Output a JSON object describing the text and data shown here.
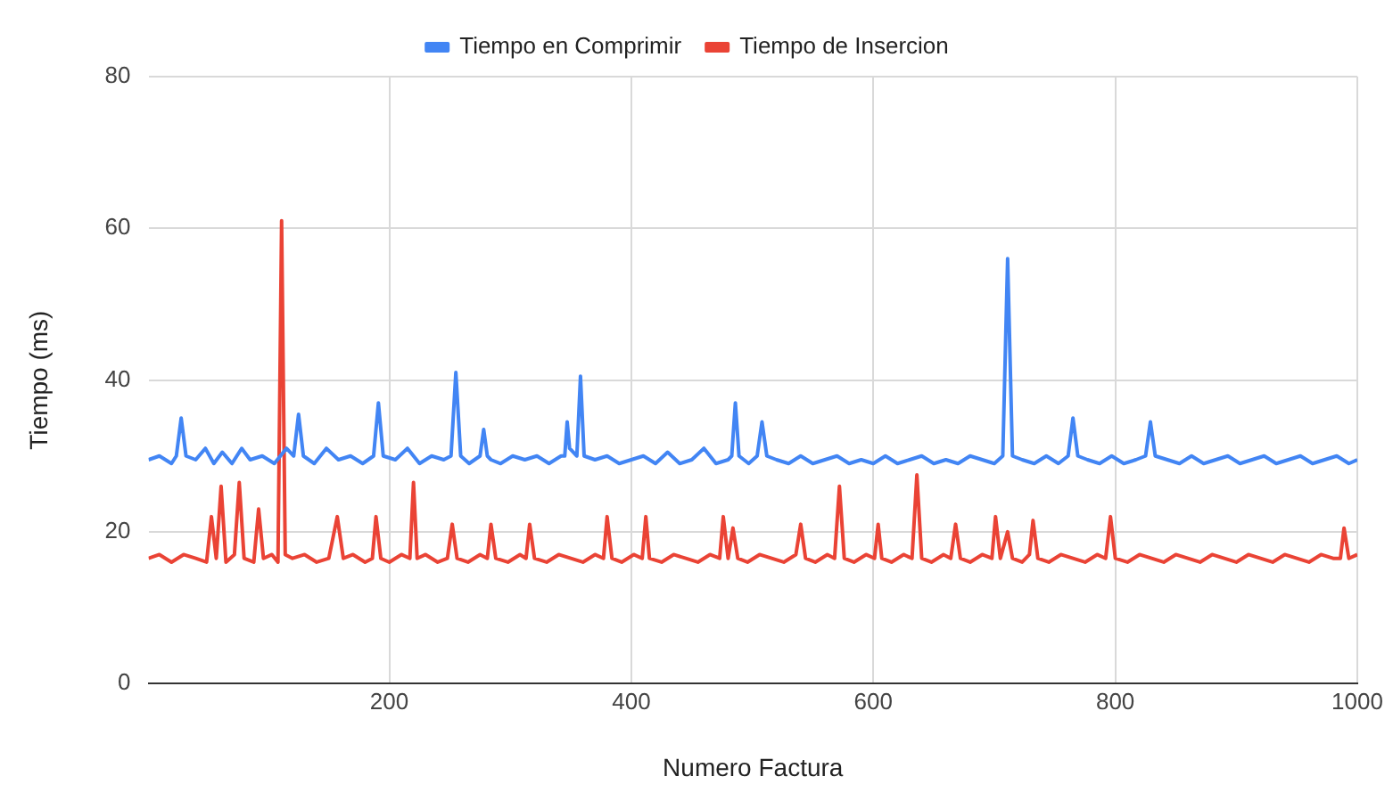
{
  "chart_data": {
    "type": "line",
    "xlabel": "Numero Factura",
    "ylabel": "Tiempo (ms)",
    "xlim": [
      1,
      1000
    ],
    "xticks": [
      200,
      400,
      600,
      800,
      1000
    ],
    "ylim": [
      0,
      80
    ],
    "yticks": [
      0,
      20,
      40,
      60,
      80
    ],
    "grid": true,
    "legend": "top",
    "marker": "none",
    "line_style": "solid",
    "series": [
      {
        "name": "Tiempo en Comprimir",
        "color": "#4285f4",
        "x": [
          1,
          10,
          20,
          24,
          28,
          32,
          40,
          48,
          55,
          62,
          70,
          78,
          85,
          95,
          105,
          115,
          121,
          125,
          129,
          138,
          148,
          158,
          168,
          178,
          187,
          191,
          195,
          205,
          215,
          225,
          235,
          245,
          251,
          255,
          259,
          266,
          275,
          278,
          281,
          284,
          292,
          302,
          312,
          322,
          332,
          342,
          345,
          347,
          349,
          355,
          358,
          361,
          370,
          380,
          390,
          400,
          410,
          420,
          430,
          440,
          450,
          460,
          470,
          480,
          483,
          486,
          489,
          497,
          504,
          508,
          512,
          520,
          530,
          540,
          550,
          560,
          570,
          580,
          590,
          600,
          610,
          620,
          630,
          640,
          650,
          660,
          670,
          680,
          690,
          700,
          707,
          711,
          715,
          723,
          733,
          743,
          753,
          761,
          765,
          769,
          777,
          787,
          797,
          807,
          817,
          825,
          829,
          833,
          843,
          853,
          863,
          873,
          883,
          893,
          903,
          913,
          923,
          933,
          943,
          953,
          963,
          973,
          983,
          993,
          1000
        ],
        "values": [
          29.5,
          30,
          29,
          30,
          35,
          30,
          29.5,
          31,
          29,
          30.5,
          29,
          31,
          29.5,
          30,
          29,
          31,
          30,
          35.5,
          30,
          29,
          31,
          29.5,
          30,
          29,
          30,
          37,
          30,
          29.5,
          31,
          29,
          30,
          29.5,
          30,
          41,
          30,
          29,
          30,
          33.5,
          30,
          29.5,
          29,
          30,
          29.5,
          30,
          29,
          30,
          30,
          34.5,
          31,
          30,
          40.5,
          30,
          29.5,
          30,
          29,
          29.5,
          30,
          29,
          30.5,
          29,
          29.5,
          31,
          29,
          29.5,
          30,
          37,
          30,
          29,
          30,
          34.5,
          30,
          29.5,
          29,
          30,
          29,
          29.5,
          30,
          29,
          29.5,
          29,
          30,
          29,
          29.5,
          30,
          29,
          29.5,
          29,
          30,
          29.5,
          29,
          30,
          56,
          30,
          29.5,
          29,
          30,
          29,
          30,
          35,
          30,
          29.5,
          29,
          30,
          29,
          29.5,
          30,
          34.5,
          30,
          29.5,
          29,
          30,
          29,
          29.5,
          30,
          29,
          29.5,
          30,
          29,
          29.5,
          30,
          29,
          29.5,
          30,
          29,
          29.5
        ]
      },
      {
        "name": "Tiempo de Insercion",
        "color": "#ea4335",
        "x": [
          1,
          10,
          20,
          30,
          40,
          49,
          53,
          57,
          61,
          65,
          72,
          76,
          80,
          88,
          92,
          96,
          103,
          108,
          111,
          114,
          120,
          130,
          140,
          150,
          157,
          162,
          170,
          180,
          186,
          189,
          193,
          200,
          210,
          217,
          220,
          223,
          230,
          240,
          248,
          252,
          256,
          265,
          275,
          281,
          284,
          288,
          298,
          308,
          313,
          316,
          320,
          330,
          340,
          350,
          360,
          370,
          377,
          380,
          384,
          392,
          402,
          409,
          412,
          415,
          425,
          435,
          445,
          455,
          465,
          473,
          476,
          480,
          484,
          488,
          496,
          506,
          516,
          526,
          536,
          540,
          544,
          552,
          562,
          568,
          572,
          576,
          584,
          594,
          601,
          604,
          607,
          615,
          625,
          632,
          636,
          640,
          648,
          658,
          664,
          668,
          672,
          680,
          690,
          698,
          701,
          705,
          711,
          715,
          723,
          729,
          732,
          736,
          745,
          755,
          765,
          775,
          785,
          792,
          796,
          800,
          810,
          820,
          830,
          840,
          850,
          860,
          870,
          880,
          890,
          900,
          910,
          920,
          930,
          940,
          950,
          960,
          970,
          980,
          986,
          989,
          993,
          1000
        ],
        "values": [
          16.5,
          17,
          16,
          17,
          16.5,
          16,
          22,
          16.5,
          26,
          16,
          17,
          26.5,
          16.5,
          16,
          23,
          16.5,
          17,
          16,
          61,
          17,
          16.5,
          17,
          16,
          16.5,
          22,
          16.5,
          17,
          16,
          16.5,
          22,
          16.5,
          16,
          17,
          16.5,
          26.5,
          16.5,
          17,
          16,
          16.5,
          21,
          16.5,
          16,
          17,
          16.5,
          21,
          16.5,
          16,
          17,
          16.5,
          21,
          16.5,
          16,
          17,
          16.5,
          16,
          17,
          16.5,
          22,
          16.5,
          16,
          17,
          16.5,
          22,
          16.5,
          16,
          17,
          16.5,
          16,
          17,
          16.5,
          22,
          16.5,
          20.5,
          16.5,
          16,
          17,
          16.5,
          16,
          17,
          21,
          16.5,
          16,
          17,
          16.5,
          26,
          16.5,
          16,
          17,
          16.5,
          21,
          16.5,
          16,
          17,
          16.5,
          27.5,
          16.5,
          16,
          17,
          16.5,
          21,
          16.5,
          16,
          17,
          16.5,
          22,
          16.5,
          20,
          16.5,
          16,
          17,
          21.5,
          16.5,
          16,
          17,
          16.5,
          16,
          17,
          16.5,
          22,
          16.5,
          16,
          17,
          16.5,
          16,
          17,
          16.5,
          16,
          17,
          16.5,
          16,
          17,
          16.5,
          16,
          17,
          16.5,
          16,
          17,
          16.5,
          16.5,
          20.5,
          16.5,
          17
        ]
      }
    ]
  }
}
